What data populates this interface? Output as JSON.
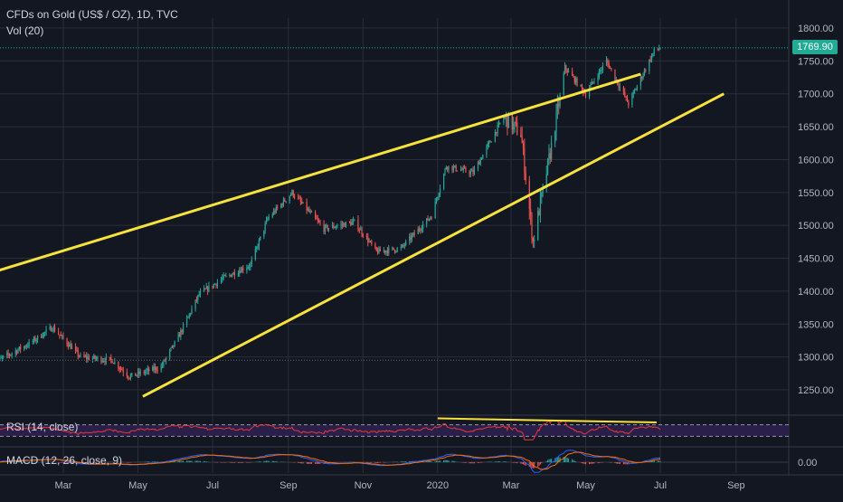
{
  "header": {
    "title": "CFDs on Gold (US$ / OZ), 1D, TVC",
    "volume": "Vol (20)"
  },
  "last_price": "1769.90",
  "rsi_label": "RSI (14, close)",
  "macd_label": "MACD (12, 26, close, 9)",
  "colors": {
    "background": "#131722",
    "up": "#26a69a",
    "down": "#ef5350",
    "trendline": "#f7e13b",
    "rsi": "#e53935",
    "rsi_band": "#2a1f4a",
    "grid": "#2a2e39",
    "axis_text": "#b2b5be",
    "price_line": "#22ab94"
  },
  "chart_data": {
    "type": "candlestick",
    "title": "CFDs on Gold (US$ / OZ), 1D, TVC",
    "xlabel": "",
    "ylabel": "",
    "x_tick_labels": [
      "Mar",
      "May",
      "Jul",
      "Sep",
      "Nov",
      "2020",
      "Mar",
      "May",
      "Jul",
      "Sep"
    ],
    "y_tick_labels": [
      "1800.00",
      "1750.00",
      "1700.00",
      "1650.00",
      "1600.00",
      "1550.00",
      "1500.00",
      "1450.00",
      "1400.00",
      "1350.00",
      "1300.00",
      "1250.00"
    ],
    "ylim": [
      1210,
      1830
    ],
    "grid": true,
    "series": [
      {
        "x": [
          "2019-01-02",
          "2019-02-01",
          "2019-02-20",
          "2019-03-15",
          "2019-04-10",
          "2019-04-24",
          "2019-05-20",
          "2019-06-03",
          "2019-06-20",
          "2019-07-10",
          "2019-08-01",
          "2019-08-15",
          "2019-09-04",
          "2019-09-30",
          "2019-10-25",
          "2019-11-12",
          "2019-12-02",
          "2019-12-27",
          "2020-01-08",
          "2020-01-30",
          "2020-02-24",
          "2020-03-09",
          "2020-03-19",
          "2020-04-03",
          "2020-04-14",
          "2020-05-01",
          "2020-05-18",
          "2020-06-05",
          "2020-06-26",
          "2020-07-01"
        ],
        "values": [
          1290,
          1320,
          1345,
          1300,
          1295,
          1270,
          1285,
          1330,
          1395,
          1420,
          1440,
          1510,
          1550,
          1495,
          1505,
          1460,
          1465,
          1515,
          1590,
          1580,
          1665,
          1640,
          1475,
          1620,
          1740,
          1700,
          1750,
          1685,
          1765,
          1770
        ]
      }
    ],
    "trendlines": [
      {
        "name": "upper",
        "points": [
          [
            "2018-12-18",
            1420
          ],
          [
            "2020-06-15",
            1730
          ]
        ]
      },
      {
        "name": "lower",
        "points": [
          [
            "2019-05-05",
            1240
          ],
          [
            "2020-08-22",
            1700
          ]
        ]
      }
    ],
    "rsi": {
      "label": "RSI (14, close)",
      "bands": [
        30,
        70
      ]
    },
    "macd": {
      "label": "MACD (12, 26, close, 9)",
      "tick": "0.00"
    }
  }
}
